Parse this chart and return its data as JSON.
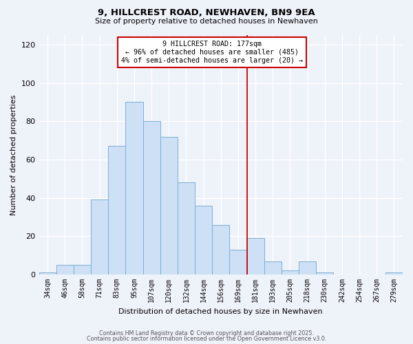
{
  "title1": "9, HILLCREST ROAD, NEWHAVEN, BN9 9EA",
  "title2": "Size of property relative to detached houses in Newhaven",
  "xlabel": "Distribution of detached houses by size in Newhaven",
  "ylabel": "Number of detached properties",
  "categories": [
    "34sqm",
    "46sqm",
    "58sqm",
    "71sqm",
    "83sqm",
    "95sqm",
    "107sqm",
    "120sqm",
    "132sqm",
    "144sqm",
    "156sqm",
    "169sqm",
    "181sqm",
    "193sqm",
    "205sqm",
    "218sqm",
    "230sqm",
    "242sqm",
    "254sqm",
    "267sqm",
    "279sqm"
  ],
  "values": [
    1,
    5,
    5,
    39,
    67,
    90,
    80,
    72,
    48,
    36,
    26,
    13,
    19,
    7,
    2,
    7,
    1,
    0,
    0,
    0,
    1
  ],
  "bar_color": "#cde0f5",
  "bar_edge_color": "#7aafd4",
  "vline_index": 12,
  "annotation_title": "9 HILLCREST ROAD: 177sqm",
  "annotation_line1": "← 96% of detached houses are smaller (485)",
  "annotation_line2": "4% of semi-detached houses are larger (20) →",
  "annotation_box_color": "#ffffff",
  "annotation_box_edge": "#cc0000",
  "vline_color": "#cc0000",
  "footnote1": "Contains HM Land Registry data © Crown copyright and database right 2025.",
  "footnote2": "Contains public sector information licensed under the Open Government Licence v3.0.",
  "ylim": [
    0,
    125
  ],
  "yticks": [
    0,
    20,
    40,
    60,
    80,
    100,
    120
  ],
  "background_color": "#eef2f9",
  "grid_color": "#ffffff"
}
